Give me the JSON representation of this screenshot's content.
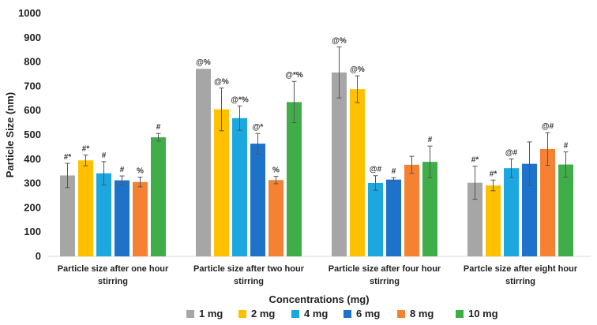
{
  "chart_data": {
    "type": "bar",
    "title": "",
    "xlabel": "Concentrations (mg)",
    "ylabel": "Particle Size (nm)",
    "ylim": [
      0,
      1000
    ],
    "yticks": [
      0,
      100,
      200,
      300,
      400,
      500,
      600,
      700,
      800,
      900,
      1000
    ],
    "grid": false,
    "legend_position": "bottom",
    "categories": [
      [
        "Particle size after one hour",
        "stirring"
      ],
      [
        "Particle size after two hour",
        "stirring"
      ],
      [
        "Particle size after four hour",
        "stirring"
      ],
      [
        "Partcle size after eight hour",
        "stirring"
      ]
    ],
    "series": [
      {
        "name": "1 mg",
        "color": "#a6a6a6",
        "values": [
          333,
          772,
          757,
          303
        ],
        "errors": [
          50,
          0,
          105,
          68
        ],
        "labels": [
          "#*",
          "@%",
          "@%",
          "#*"
        ]
      },
      {
        "name": "2 mg",
        "color": "#ffc000",
        "values": [
          395,
          605,
          688,
          292
        ],
        "errors": [
          22,
          88,
          55,
          22
        ],
        "labels": [
          "#*",
          "@%",
          "@%",
          "#*"
        ]
      },
      {
        "name": "4 mg",
        "color": "#1ca7e0",
        "values": [
          342,
          569,
          302,
          363
        ],
        "errors": [
          48,
          50,
          30,
          38
        ],
        "labels": [
          "#",
          "@*%",
          "@#",
          "@#"
        ]
      },
      {
        "name": "6 mg",
        "color": "#1f72c9",
        "values": [
          313,
          464,
          316,
          381
        ],
        "errors": [
          18,
          42,
          8,
          90
        ],
        "labels": [
          "#",
          "@*",
          "#",
          ""
        ]
      },
      {
        "name": "8 mg",
        "color": "#f58233",
        "values": [
          306,
          314,
          377,
          442
        ],
        "errors": [
          20,
          15,
          35,
          67
        ],
        "labels": [
          "%",
          "%",
          "",
          "@#"
        ]
      },
      {
        "name": "10 mg",
        "color": "#3fae49",
        "values": [
          490,
          635,
          389,
          378
        ],
        "errors": [
          16,
          85,
          65,
          52
        ],
        "labels": [
          "#",
          "@*%",
          "#",
          "#"
        ]
      }
    ]
  }
}
